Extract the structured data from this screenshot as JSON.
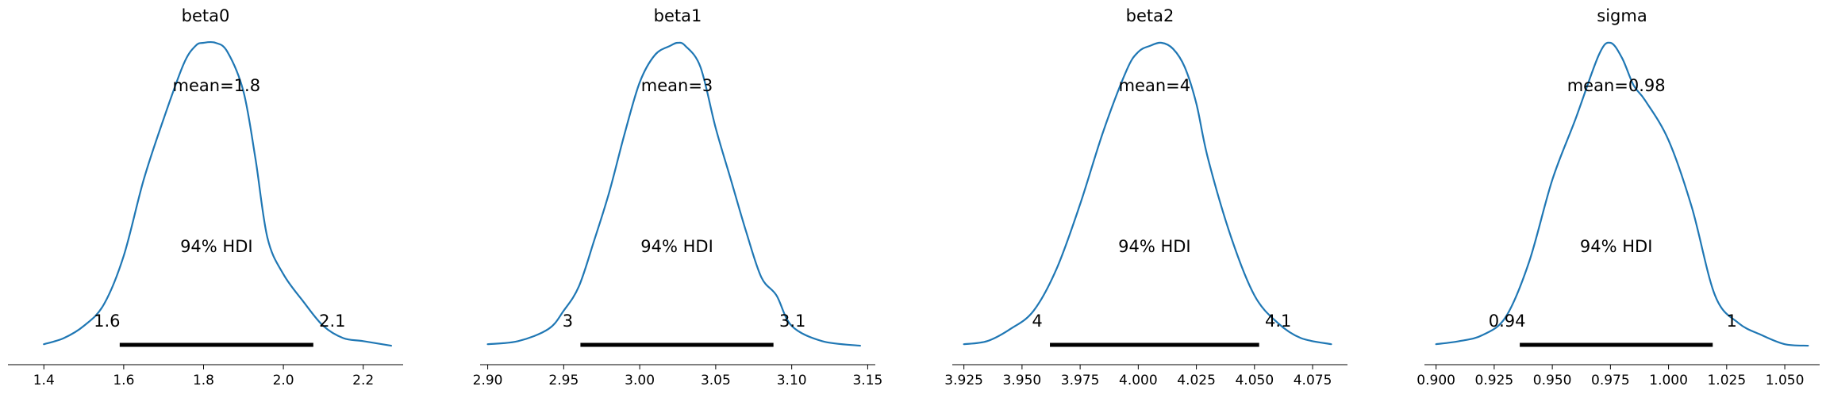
{
  "chart_data": [
    {
      "type": "line",
      "title": "beta0",
      "mean_label": "mean=1.8",
      "hdi_label": "94% HDI",
      "hdi": [
        1.59,
        2.075
      ],
      "hdi_low_label": "1.6",
      "hdi_high_label": "2.1",
      "xlim": [
        1.31,
        2.3
      ],
      "xticks": [
        1.4,
        1.6,
        1.8,
        2.0,
        2.2
      ],
      "xtick_labels": [
        "1.4",
        "1.6",
        "1.8",
        "2.0",
        "2.2"
      ],
      "x": [
        1.4,
        1.45,
        1.5,
        1.55,
        1.6,
        1.65,
        1.7,
        1.75,
        1.78,
        1.8,
        1.83,
        1.86,
        1.9,
        1.93,
        1.96,
        2.0,
        2.05,
        2.1,
        2.15,
        2.2,
        2.27
      ],
      "y": [
        0.01,
        0.03,
        0.07,
        0.14,
        0.3,
        0.55,
        0.75,
        0.93,
        0.99,
        1.0,
        1.0,
        0.97,
        0.84,
        0.62,
        0.36,
        0.24,
        0.15,
        0.07,
        0.03,
        0.02,
        0.005
      ]
    },
    {
      "type": "line",
      "title": "beta1",
      "mean_label": "mean=3",
      "hdi_label": "94% HDI",
      "hdi": [
        2.961,
        3.088
      ],
      "hdi_low_label": "3",
      "hdi_high_label": "3.1",
      "xlim": [
        2.895,
        3.155
      ],
      "xticks": [
        2.9,
        2.95,
        3.0,
        3.05,
        3.1,
        3.15
      ],
      "xtick_labels": [
        "2.90",
        "2.95",
        "3.00",
        "3.05",
        "3.10",
        "3.15"
      ],
      "x": [
        2.9,
        2.92,
        2.94,
        2.95,
        2.96,
        2.97,
        2.98,
        2.99,
        3.0,
        3.01,
        3.02,
        3.025,
        3.03,
        3.04,
        3.05,
        3.06,
        3.07,
        3.08,
        3.09,
        3.1,
        3.12,
        3.145
      ],
      "y": [
        0.01,
        0.02,
        0.06,
        0.12,
        0.2,
        0.35,
        0.51,
        0.7,
        0.87,
        0.96,
        0.99,
        1.0,
        0.99,
        0.92,
        0.72,
        0.55,
        0.38,
        0.23,
        0.17,
        0.07,
        0.02,
        0.005
      ]
    },
    {
      "type": "line",
      "title": "beta2",
      "mean_label": "mean=4",
      "hdi_label": "94% HDI",
      "hdi": [
        3.962,
        4.052
      ],
      "hdi_low_label": "4",
      "hdi_high_label": "4.1",
      "xlim": [
        3.92,
        4.09
      ],
      "xticks": [
        3.925,
        3.95,
        3.975,
        4.0,
        4.025,
        4.05,
        4.075
      ],
      "xtick_labels": [
        "3.925",
        "3.950",
        "3.975",
        "4.000",
        "4.025",
        "4.050",
        "4.075"
      ],
      "x": [
        3.925,
        3.935,
        3.945,
        3.955,
        3.965,
        3.975,
        3.985,
        3.995,
        4.0,
        4.005,
        4.01,
        4.015,
        4.02,
        4.025,
        4.03,
        4.04,
        4.05,
        4.06,
        4.07,
        4.083
      ],
      "y": [
        0.01,
        0.02,
        0.06,
        0.12,
        0.26,
        0.47,
        0.71,
        0.91,
        0.97,
        0.99,
        1.0,
        0.98,
        0.92,
        0.8,
        0.62,
        0.36,
        0.17,
        0.08,
        0.03,
        0.01
      ]
    },
    {
      "type": "line",
      "title": "sigma",
      "mean_label": "mean=0.98",
      "hdi_label": "94% HDI",
      "hdi": [
        0.936,
        1.019
      ],
      "hdi_low_label": "0.94",
      "hdi_high_label": "1",
      "xlim": [
        0.895,
        1.065
      ],
      "xticks": [
        0.9,
        0.925,
        0.95,
        0.975,
        1.0,
        1.025,
        1.05
      ],
      "xtick_labels": [
        "0.900",
        "0.925",
        "0.950",
        "0.975",
        "1.000",
        "1.025",
        "1.050"
      ],
      "x": [
        0.9,
        0.91,
        0.92,
        0.93,
        0.94,
        0.95,
        0.96,
        0.97,
        0.975,
        0.98,
        0.985,
        0.99,
        1.0,
        1.01,
        1.02,
        1.03,
        1.04,
        1.05,
        1.06
      ],
      "y": [
        0.01,
        0.02,
        0.04,
        0.1,
        0.28,
        0.55,
        0.75,
        0.96,
        1.0,
        0.95,
        0.86,
        0.81,
        0.68,
        0.46,
        0.17,
        0.08,
        0.04,
        0.01,
        0.005
      ]
    }
  ],
  "style": {
    "line_color": "#1f77b4",
    "hdi_color": "#000000"
  }
}
